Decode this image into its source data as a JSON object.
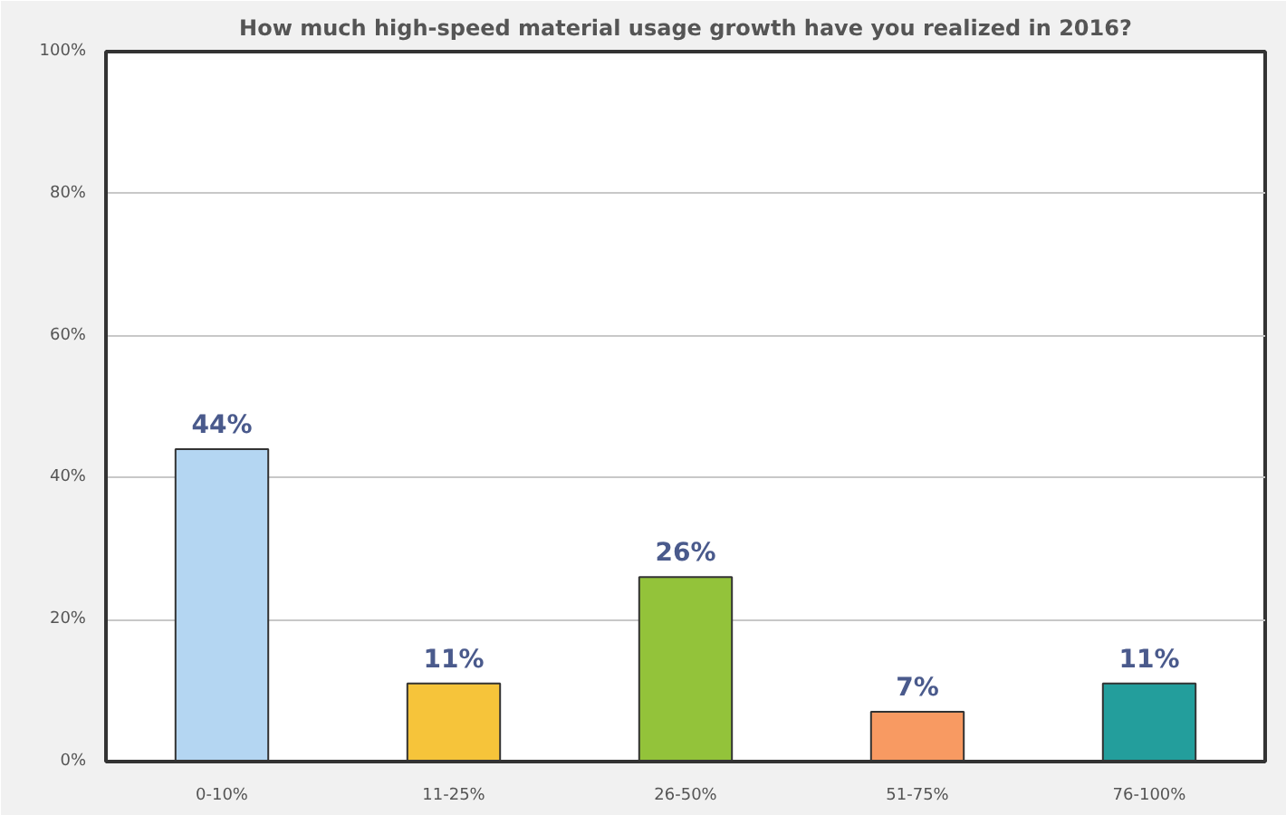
{
  "chart_data": {
    "type": "bar",
    "title": "How much high-speed material usage growth have you realized in 2016?",
    "categories": [
      "0-10%",
      "11-25%",
      "26-50%",
      "51-75%",
      "76-100%"
    ],
    "values": [
      44,
      11,
      26,
      7,
      11
    ],
    "colors": [
      "#b4d6f2",
      "#f6c43a",
      "#93c33a",
      "#f89a62",
      "#239e9c"
    ],
    "value_labels": [
      "44%",
      "11%",
      "26%",
      "7%",
      "11%"
    ],
    "ylim": [
      0,
      100
    ],
    "yticks": [
      {
        "value": 0,
        "label": "0%"
      },
      {
        "value": 20,
        "label": "20%"
      },
      {
        "value": 40,
        "label": "40%"
      },
      {
        "value": 60,
        "label": "60%"
      },
      {
        "value": 80,
        "label": "80%"
      },
      {
        "value": 100,
        "label": "100%"
      }
    ],
    "grid": "y"
  }
}
